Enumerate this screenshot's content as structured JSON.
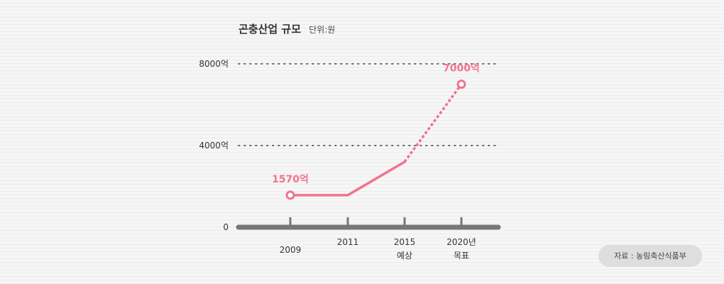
{
  "chart_data": {
    "type": "line",
    "title": "곤충산업 규모",
    "unit_label": "단위:원",
    "x": [
      "2009",
      "2011",
      "2015",
      "2020"
    ],
    "x_tick_labels": [
      {
        "line1": "2009",
        "line2": ""
      },
      {
        "line1": "2011",
        "line2": ""
      },
      {
        "line1": "2015",
        "line2": "예상"
      },
      {
        "line1": "2020년",
        "line2": "목표"
      }
    ],
    "series": [
      {
        "values": [
          1570,
          1570,
          3200,
          7000
        ],
        "segments": [
          "actual",
          "actual",
          "projected"
        ],
        "color": "#f07490"
      }
    ],
    "ylim": [
      0,
      10500
    ],
    "y_ticks": [
      {
        "value": 0,
        "label": "0"
      },
      {
        "value": 4000,
        "label": "4000억"
      },
      {
        "value": 8000,
        "label": "8000억"
      }
    ],
    "data_labels": [
      {
        "index": 0,
        "text": "1570억"
      },
      {
        "index": 3,
        "text": "7000억"
      }
    ],
    "grid": "dotted horizontal",
    "colors": {
      "line": "#f07490",
      "axis": "#777777",
      "grid": "#666666"
    }
  },
  "source_label": "자료 : 농림축산식품부"
}
